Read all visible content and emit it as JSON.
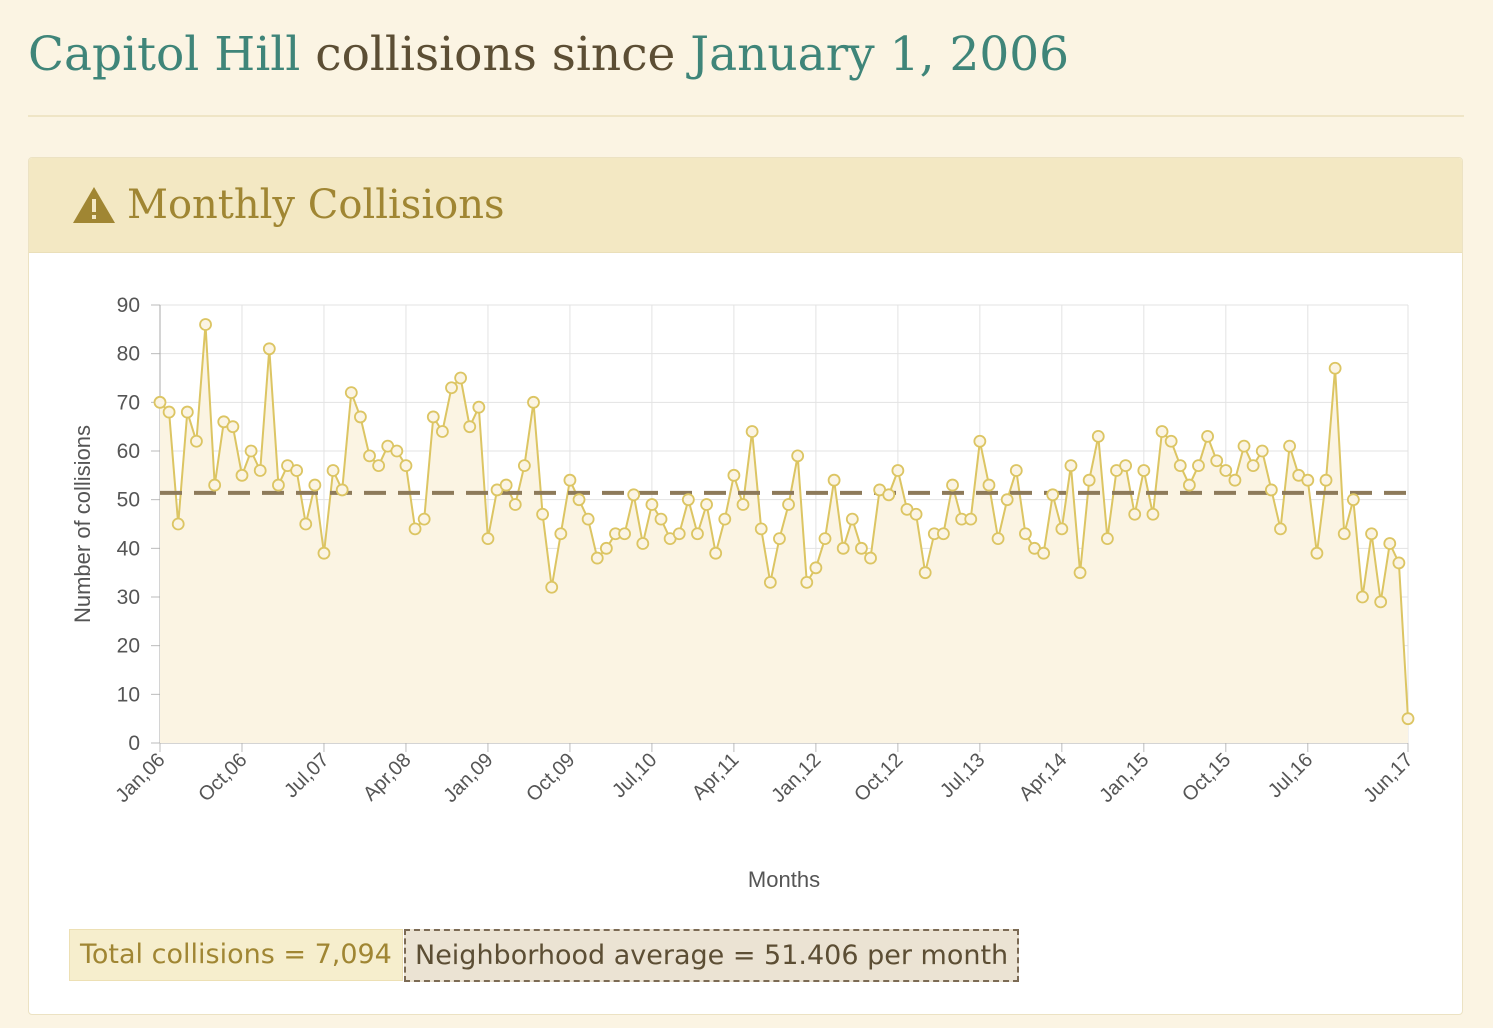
{
  "header": {
    "title_place": "Capitol Hill",
    "title_mid": " collisions since ",
    "title_date": "January 1, 2006"
  },
  "panel": {
    "icon": "warning-triangle-icon",
    "title": "Monthly Collisions"
  },
  "colors": {
    "accent_teal": "#3f8579",
    "text_brown": "#5c4e34",
    "gold": "#a08633",
    "series_line": "#dcc563",
    "area_fill": "#fbf4e3",
    "average_line": "#8d7a5a"
  },
  "chart_data": {
    "type": "line",
    "xlabel": "Months",
    "ylabel": "Number of collisions",
    "ylim": [
      0,
      90
    ],
    "yticks": [
      0,
      10,
      20,
      30,
      40,
      50,
      60,
      70,
      80,
      90
    ],
    "x_tick_labels": [
      "Jan,06",
      "Oct,06",
      "Jul,07",
      "Apr,08",
      "Jan,09",
      "Oct,09",
      "Jul,10",
      "Apr,11",
      "Jan,12",
      "Oct,12",
      "Jul,13",
      "Apr,14",
      "Jan,15",
      "Oct,15",
      "Jul,16",
      "Jun,17"
    ],
    "grid": true,
    "fill_under_line": true,
    "x_start": "Jan 2006",
    "x_end": "Jun 2017",
    "series": [
      {
        "values": [
          70,
          68,
          45,
          68,
          62,
          86,
          53,
          66,
          65,
          55,
          60,
          56,
          81,
          53,
          57,
          56,
          45,
          53,
          39,
          56,
          52,
          72,
          67,
          59,
          57,
          61,
          60,
          57,
          44,
          46,
          67,
          64,
          73,
          75,
          65,
          69,
          42,
          52,
          53,
          49,
          57,
          70,
          47,
          32,
          43,
          54,
          50,
          46,
          38,
          40,
          43,
          43,
          51,
          41,
          49,
          46,
          42,
          43,
          50,
          43,
          49,
          39,
          46,
          55,
          49,
          64,
          44,
          33,
          42,
          49,
          59,
          33,
          36,
          42,
          54,
          40,
          46,
          40,
          38,
          52,
          51,
          56,
          48,
          47,
          35,
          43,
          43,
          53,
          46,
          46,
          62,
          53,
          42,
          50,
          56,
          43,
          40,
          39,
          51,
          44,
          57,
          35,
          54,
          63,
          42,
          56,
          57,
          47,
          56,
          47,
          64,
          62,
          57,
          53,
          57,
          63,
          58,
          56,
          54,
          61,
          57,
          60,
          52,
          44,
          61,
          55,
          54,
          39,
          54,
          77,
          43,
          50,
          30,
          43,
          29,
          41,
          37,
          5
        ]
      }
    ],
    "average": 51.406
  },
  "stats": {
    "total_label": "Total collisions = 7,094",
    "average_label": "Neighborhood average = 51.406 per month"
  }
}
